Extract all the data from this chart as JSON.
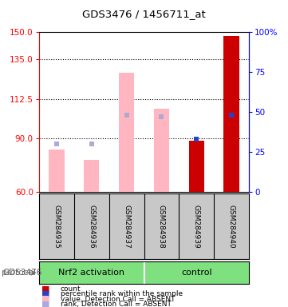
{
  "title": "GDS3476 / 1456711_at",
  "samples": [
    "GSM284935",
    "GSM284936",
    "GSM284937",
    "GSM284938",
    "GSM284939",
    "GSM284940"
  ],
  "groups": [
    "Nrf2 activation",
    "Nrf2 activation",
    "Nrf2 activation",
    "control",
    "control",
    "control"
  ],
  "ylim_left": [
    60,
    150
  ],
  "ylim_right": [
    0,
    100
  ],
  "yticks_left": [
    60,
    90,
    112.5,
    135,
    150
  ],
  "yticks_right": [
    0,
    25,
    50,
    75,
    100
  ],
  "ytick_right_labels": [
    "0",
    "25",
    "50",
    "75",
    "100%"
  ],
  "bar_values": [
    84,
    78,
    127,
    107,
    89,
    148
  ],
  "bar_colors": [
    "#FFB6C1",
    "#FFB6C1",
    "#FFB6C1",
    "#FFB6C1",
    "#CC0000",
    "#CC0000"
  ],
  "rank_dots": [
    30,
    30,
    48,
    47,
    33,
    48
  ],
  "rank_dot_colors": [
    "#AAAADD",
    "#AAAADD",
    "#AAAACC",
    "#AAAACC",
    "#2244CC",
    "#2244CC"
  ],
  "rank_dot_is_blue": [
    false,
    false,
    false,
    false,
    true,
    false
  ],
  "rank_dot_is_blue2": [
    false,
    false,
    false,
    false,
    false,
    true
  ],
  "grid_dotted": [
    90,
    112.5,
    135
  ],
  "group_green": "#7EE07E",
  "bg_sample": "#C8C8C8",
  "legend_colors": [
    "#CC0000",
    "#2244CC",
    "#FFB6C1",
    "#AAAADD"
  ],
  "legend_labels": [
    "count",
    "percentile rank within the sample",
    "value, Detection Call = ABSENT",
    "rank, Detection Call = ABSENT"
  ]
}
